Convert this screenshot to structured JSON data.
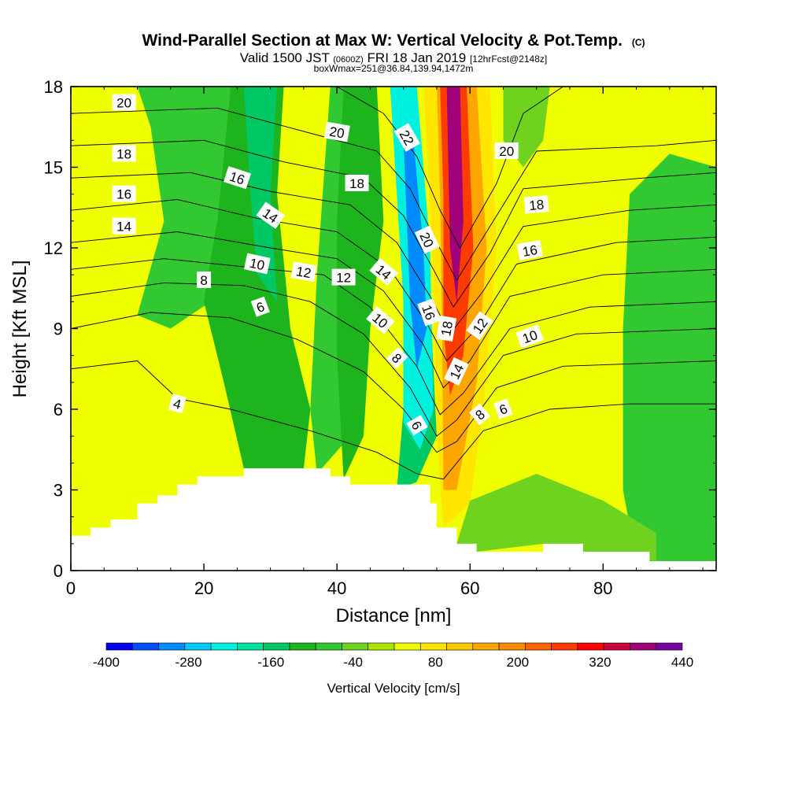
{
  "chart_data": {
    "type": "contour",
    "title": "Wind-Parallel Section at Max W: Vertical Velocity & Pot.Temp.",
    "title_mark": "(C)",
    "subtitle_prefix": "Valid 1500 JST",
    "subtitle_utc": "(0600Z)",
    "subtitle_date": "FRI 18 Jan 2019",
    "subtitle_fcst": "[12hrFcst@2148z]",
    "subtitle2": "boxWmax=251@36.84,139.94,1472m",
    "xlabel": "Distance [nm]",
    "ylabel": "Height [Kft MSL]",
    "xlim": [
      0,
      97
    ],
    "ylim": [
      0,
      18
    ],
    "x_ticks": [
      "0",
      "20",
      "40",
      "60",
      "80"
    ],
    "y_ticks": [
      "0",
      "3",
      "6",
      "9",
      "12",
      "15",
      "18"
    ],
    "colorbar_label": "Vertical Velocity [cm/s]",
    "colorbar_ticks": [
      "-400",
      "-280",
      "-160",
      "-40",
      "80",
      "200",
      "320",
      "440"
    ],
    "colorbar_colors": [
      "#0000ee",
      "#0050f5",
      "#008cff",
      "#00c8ff",
      "#00f0e0",
      "#00e0a0",
      "#00c864",
      "#1eb41e",
      "#32c832",
      "#6ed21e",
      "#aae600",
      "#f0ff00",
      "#ffe600",
      "#ffc800",
      "#ffa500",
      "#ff8c00",
      "#ff6400",
      "#ff3c00",
      "#ff0000",
      "#c8003c",
      "#a00078",
      "#7800a0"
    ],
    "terrain_kft": [
      [
        0,
        1.3
      ],
      [
        3,
        1.6
      ],
      [
        6,
        1.9
      ],
      [
        10,
        2.5
      ],
      [
        13,
        2.8
      ],
      [
        16,
        3.2
      ],
      [
        19,
        3.5
      ],
      [
        26,
        3.8
      ],
      [
        39,
        3.5
      ],
      [
        42,
        3.2
      ],
      [
        54,
        2.5
      ],
      [
        55,
        1.6
      ],
      [
        58,
        1.0
      ],
      [
        61,
        0.7
      ],
      [
        71,
        1.0
      ],
      [
        77,
        0.7
      ],
      [
        87,
        0.35
      ],
      [
        97,
        0.35
      ]
    ],
    "velocity_regions": [
      {
        "w": -60,
        "pts": [
          [
            10,
            18
          ],
          [
            24,
            18
          ],
          [
            22,
            13
          ],
          [
            21,
            10
          ],
          [
            15,
            9
          ],
          [
            10,
            9.5
          ],
          [
            14,
            13
          ],
          [
            12,
            16.5
          ]
        ]
      },
      {
        "w": -100,
        "pts": [
          [
            24,
            18
          ],
          [
            32,
            18
          ],
          [
            31,
            14
          ],
          [
            33,
            9
          ],
          [
            36,
            6
          ],
          [
            35,
            3.8
          ],
          [
            26,
            3.8
          ],
          [
            23,
            7
          ],
          [
            20,
            10
          ],
          [
            22,
            13
          ]
        ]
      },
      {
        "w": -150,
        "pts": [
          [
            26,
            18
          ],
          [
            31,
            18
          ],
          [
            30,
            14
          ],
          [
            31,
            10
          ],
          [
            28,
            11
          ],
          [
            27,
            14
          ]
        ]
      },
      {
        "w": -60,
        "pts": [
          [
            39,
            18
          ],
          [
            44,
            18
          ],
          [
            45,
            14
          ],
          [
            43,
            9
          ],
          [
            42,
            5
          ],
          [
            37,
            3.6
          ],
          [
            36,
            6
          ],
          [
            37,
            11
          ]
        ]
      },
      {
        "w": -100,
        "pts": [
          [
            41,
            18
          ],
          [
            46,
            18
          ],
          [
            47,
            13
          ],
          [
            45,
            9
          ],
          [
            44,
            5
          ],
          [
            41,
            3.4
          ],
          [
            40,
            8
          ],
          [
            40,
            13
          ]
        ]
      },
      {
        "w": -150,
        "pts": [
          [
            44,
            18
          ],
          [
            48,
            18
          ],
          [
            50,
            11
          ],
          [
            50,
            6
          ],
          [
            49,
            3
          ],
          [
            52,
            3.3
          ],
          [
            55,
            5
          ],
          [
            54,
            10
          ],
          [
            51,
            18
          ]
        ]
      },
      {
        "w": -220,
        "pts": [
          [
            48,
            18
          ],
          [
            52,
            18
          ],
          [
            54,
            12
          ],
          [
            54.5,
            6
          ],
          [
            52.5,
            4.5
          ],
          [
            50,
            5.5
          ],
          [
            50,
            10
          ]
        ]
      },
      {
        "w": -300,
        "pts": [
          [
            50,
            16
          ],
          [
            51.5,
            16
          ],
          [
            53,
            12
          ],
          [
            53.5,
            9
          ],
          [
            52,
            7.5
          ],
          [
            51,
            10
          ]
        ]
      },
      {
        "w": 60,
        "pts": [
          [
            53,
            18
          ],
          [
            63,
            18
          ],
          [
            64,
            12
          ],
          [
            62,
            6
          ],
          [
            60,
            2.5
          ],
          [
            56,
            1.6
          ],
          [
            55,
            5
          ],
          [
            54.5,
            11
          ]
        ]
      },
      {
        "w": 160,
        "pts": [
          [
            55,
            18
          ],
          [
            61,
            18
          ],
          [
            62.5,
            12
          ],
          [
            61,
            7
          ],
          [
            58,
            3
          ],
          [
            56,
            3
          ],
          [
            55.8,
            9
          ],
          [
            55.5,
            14
          ]
        ]
      },
      {
        "w": 260,
        "pts": [
          [
            55.5,
            18
          ],
          [
            59.5,
            18
          ],
          [
            60.5,
            12
          ],
          [
            59,
            8
          ],
          [
            57,
            6.5
          ],
          [
            56,
            9
          ],
          [
            56,
            14
          ]
        ]
      },
      {
        "w": 380,
        "pts": [
          [
            56.5,
            18
          ],
          [
            58.5,
            18
          ],
          [
            59,
            13
          ],
          [
            58,
            10
          ],
          [
            57,
            12
          ]
        ]
      },
      {
        "w": -40,
        "pts": [
          [
            65,
            18
          ],
          [
            72,
            18
          ],
          [
            71,
            16
          ],
          [
            68,
            15
          ],
          [
            65,
            16
          ]
        ]
      },
      {
        "w": -60,
        "pts": [
          [
            84,
            14
          ],
          [
            90,
            15.5
          ],
          [
            97,
            15
          ],
          [
            97,
            0.35
          ],
          [
            85,
            0.35
          ],
          [
            83,
            3
          ],
          [
            83,
            9
          ]
        ]
      },
      {
        "w": -40,
        "pts": [
          [
            60,
            2.6
          ],
          [
            70,
            3.6
          ],
          [
            80,
            2.6
          ],
          [
            88,
            1.4
          ],
          [
            88,
            0.35
          ],
          [
            77,
            0.7
          ],
          [
            71,
            1.0
          ],
          [
            61,
            0.7
          ],
          [
            58,
            1.0
          ]
        ]
      }
    ],
    "theta_lines": [
      {
        "label": "4",
        "pts": [
          [
            0,
            7.5
          ],
          [
            10,
            7.8
          ],
          [
            16,
            6.4
          ],
          [
            24,
            6.0
          ],
          [
            36,
            5.2
          ],
          [
            46,
            4.4
          ],
          [
            52,
            3.6
          ],
          [
            56,
            3.4
          ],
          [
            62,
            5.2
          ],
          [
            72,
            6.0
          ],
          [
            84,
            6.2
          ],
          [
            97,
            6.2
          ]
        ]
      },
      {
        "label": "6",
        "pts": [
          [
            0,
            9.0
          ],
          [
            12,
            9.6
          ],
          [
            24,
            9.4
          ],
          [
            34,
            8.6
          ],
          [
            44,
            7.4
          ],
          [
            50,
            6.0
          ],
          [
            55,
            4.4
          ],
          [
            58,
            4.8
          ],
          [
            64,
            6.8
          ],
          [
            74,
            7.6
          ],
          [
            97,
            7.8
          ]
        ]
      },
      {
        "label": "8",
        "pts": [
          [
            0,
            10.2
          ],
          [
            14,
            10.7
          ],
          [
            26,
            10.6
          ],
          [
            36,
            10.0
          ],
          [
            44,
            8.8
          ],
          [
            51,
            6.8
          ],
          [
            55,
            5.0
          ],
          [
            58,
            5.6
          ],
          [
            65,
            8.0
          ],
          [
            76,
            8.8
          ],
          [
            97,
            9.0
          ]
        ]
      },
      {
        "label": "10",
        "pts": [
          [
            0,
            11.2
          ],
          [
            14,
            11.6
          ],
          [
            26,
            11.3
          ],
          [
            38,
            11.0
          ],
          [
            45,
            9.8
          ],
          [
            52,
            7.6
          ],
          [
            55.5,
            5.8
          ],
          [
            59,
            6.6
          ],
          [
            66,
            9.0
          ],
          [
            78,
            9.8
          ],
          [
            97,
            10.0
          ]
        ]
      },
      {
        "label": "12",
        "pts": [
          [
            0,
            12.2
          ],
          [
            16,
            12.6
          ],
          [
            30,
            12.0
          ],
          [
            40,
            11.6
          ],
          [
            47,
            10.4
          ],
          [
            53,
            8.4
          ],
          [
            56,
            6.8
          ],
          [
            60,
            7.8
          ],
          [
            66,
            10.2
          ],
          [
            80,
            11.0
          ],
          [
            97,
            11.2
          ]
        ]
      },
      {
        "label": "14",
        "pts": [
          [
            0,
            13.4
          ],
          [
            16,
            13.8
          ],
          [
            28,
            13.1
          ],
          [
            40,
            12.6
          ],
          [
            48,
            11.2
          ],
          [
            53.5,
            9.2
          ],
          [
            56.5,
            7.8
          ],
          [
            61,
            9.0
          ],
          [
            67,
            11.4
          ],
          [
            82,
            12.2
          ],
          [
            97,
            12.4
          ]
        ]
      },
      {
        "label": "16",
        "pts": [
          [
            0,
            14.6
          ],
          [
            18,
            14.8
          ],
          [
            30,
            14.1
          ],
          [
            42,
            13.6
          ],
          [
            49,
            12.2
          ],
          [
            54,
            10.2
          ],
          [
            57,
            8.8
          ],
          [
            62,
            10.4
          ],
          [
            68,
            12.8
          ],
          [
            84,
            13.4
          ],
          [
            97,
            13.6
          ]
        ]
      },
      {
        "label": "18",
        "pts": [
          [
            0,
            15.8
          ],
          [
            20,
            16.0
          ],
          [
            32,
            15.2
          ],
          [
            44,
            14.6
          ],
          [
            50,
            13.2
          ],
          [
            54.5,
            11.2
          ],
          [
            57.5,
            9.8
          ],
          [
            63,
            11.8
          ],
          [
            68,
            14.2
          ],
          [
            86,
            14.6
          ],
          [
            97,
            14.8
          ]
        ]
      },
      {
        "label": "20",
        "pts": [
          [
            0,
            17.0
          ],
          [
            22,
            17.2
          ],
          [
            34,
            16.4
          ],
          [
            46,
            15.6
          ],
          [
            51,
            14.2
          ],
          [
            55,
            12.2
          ],
          [
            58,
            10.8
          ],
          [
            64,
            13.2
          ],
          [
            70,
            15.6
          ],
          [
            88,
            15.8
          ],
          [
            97,
            16.0
          ]
        ]
      },
      {
        "label": "22",
        "pts": [
          [
            40,
            18.0
          ],
          [
            47,
            17.0
          ],
          [
            52,
            15.4
          ],
          [
            55.5,
            13.4
          ],
          [
            58.5,
            12.0
          ],
          [
            64,
            14.4
          ],
          [
            68,
            17.0
          ],
          [
            74,
            18.0
          ]
        ]
      }
    ],
    "theta_labels": [
      {
        "text": "20",
        "x": 8,
        "y": 17.4,
        "rot": 0
      },
      {
        "text": "18",
        "x": 8,
        "y": 15.5,
        "rot": 0
      },
      {
        "text": "16",
        "x": 8,
        "y": 14.0,
        "rot": 0
      },
      {
        "text": "14",
        "x": 8,
        "y": 12.8,
        "rot": 0
      },
      {
        "text": "8",
        "x": 20,
        "y": 10.8,
        "rot": 0
      },
      {
        "text": "16",
        "x": 25,
        "y": 14.6,
        "rot": 18
      },
      {
        "text": "14",
        "x": 30,
        "y": 13.2,
        "rot": 35
      },
      {
        "text": "10",
        "x": 28,
        "y": 11.4,
        "rot": 12
      },
      {
        "text": "6",
        "x": 28.5,
        "y": 9.8,
        "rot": -20
      },
      {
        "text": "20",
        "x": 40,
        "y": 16.3,
        "rot": 10
      },
      {
        "text": "18",
        "x": 43,
        "y": 14.4,
        "rot": 0
      },
      {
        "text": "12",
        "x": 35,
        "y": 11.1,
        "rot": 10
      },
      {
        "text": "12",
        "x": 41,
        "y": 10.9,
        "rot": 0
      },
      {
        "text": "4",
        "x": 16,
        "y": 6.2,
        "rot": 15
      },
      {
        "text": "14",
        "x": 47,
        "y": 11.1,
        "rot": 40
      },
      {
        "text": "10",
        "x": 46.5,
        "y": 9.3,
        "rot": 40
      },
      {
        "text": "8",
        "x": 49,
        "y": 7.9,
        "rot": 45
      },
      {
        "text": "6",
        "x": 52,
        "y": 5.4,
        "rot": 60
      },
      {
        "text": "22",
        "x": 50.5,
        "y": 16.1,
        "rot": 60
      },
      {
        "text": "20",
        "x": 53.5,
        "y": 12.3,
        "rot": 65
      },
      {
        "text": "16",
        "x": 53.8,
        "y": 9.6,
        "rot": 70
      },
      {
        "text": "18",
        "x": 56.5,
        "y": 9.0,
        "rot": -80
      },
      {
        "text": "14",
        "x": 58,
        "y": 7.4,
        "rot": -65
      },
      {
        "text": "12",
        "x": 61.5,
        "y": 9.1,
        "rot": -55
      },
      {
        "text": "8",
        "x": 61.5,
        "y": 5.8,
        "rot": -40
      },
      {
        "text": "6",
        "x": 65,
        "y": 6.0,
        "rot": -20
      },
      {
        "text": "10",
        "x": 69,
        "y": 8.7,
        "rot": -20
      },
      {
        "text": "16",
        "x": 69,
        "y": 11.9,
        "rot": -10
      },
      {
        "text": "18",
        "x": 70,
        "y": 13.6,
        "rot": -5
      },
      {
        "text": "20",
        "x": 65.5,
        "y": 15.6,
        "rot": 0
      }
    ]
  }
}
